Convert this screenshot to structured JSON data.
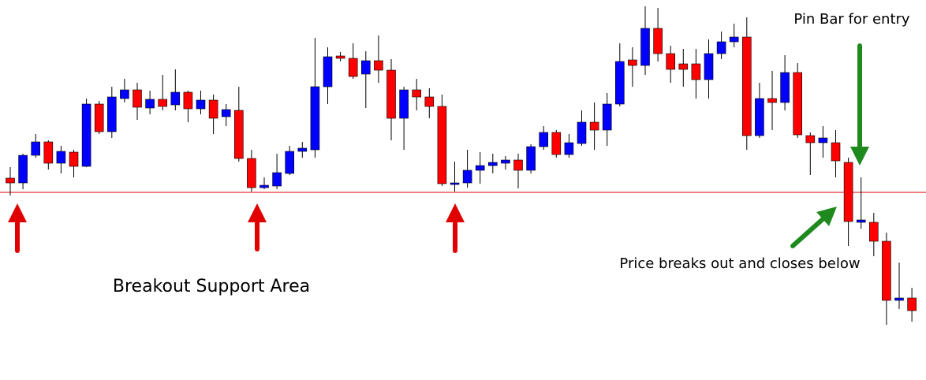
{
  "chart_data": {
    "type": "candlestick",
    "annotations": [
      "Pin Bar for entry",
      "Price breaks out and closes below",
      "Breakout Support Area"
    ],
    "ylim": [
      0,
      482
    ],
    "support_level": 238,
    "up_color": "#0000ff",
    "down_color": "#ff0000",
    "support_color": "#e00000",
    "open": [
      256,
      250,
      285,
      302,
      275,
      289,
      271,
      350,
      315,
      357,
      368,
      345,
      356,
      349,
      365,
      344,
      355,
      334,
      342,
      281,
      244,
      246,
      262,
      290,
      292,
      372,
      411,
      408,
      388,
      405,
      393,
      332,
      368,
      359,
      347,
      248,
      250,
      266,
      272,
      275,
      279,
      266,
      296,
      314,
      286,
      300,
      327,
      317,
      350,
      406,
      399,
      446,
      414,
      401,
      401,
      381,
      414,
      429,
      435,
      310,
      357,
      352,
      390,
      310,
      301,
      301,
      276,
      200,
      200,
      176,
      101,
      104
    ],
    "high": [
      270,
      287,
      312,
      304,
      297,
      292,
      357,
      354,
      372,
      382,
      377,
      367,
      387,
      394,
      367,
      367,
      362,
      350,
      372,
      292,
      257,
      287,
      297,
      302,
      434,
      422,
      416,
      427,
      417,
      437,
      407,
      372,
      382,
      370,
      362,
      277,
      292,
      289,
      287,
      284,
      287,
      299,
      322,
      317,
      312,
      342,
      352,
      364,
      427,
      422,
      474,
      472,
      424,
      420,
      420,
      432,
      442,
      452,
      460,
      377,
      392,
      412,
      402,
      314,
      322,
      317,
      282,
      257,
      212,
      187,
      149,
      117
    ],
    "low": [
      234,
      242,
      282,
      267,
      262,
      257,
      270,
      312,
      307,
      352,
      330,
      337,
      342,
      342,
      327,
      337,
      312,
      322,
      277,
      239,
      242,
      242,
      260,
      282,
      282,
      350,
      404,
      382,
      345,
      377,
      304,
      292,
      342,
      332,
      246,
      239,
      244,
      249,
      262,
      267,
      243,
      262,
      292,
      282,
      282,
      297,
      292,
      297,
      347,
      372,
      387,
      404,
      377,
      372,
      357,
      357,
      407,
      422,
      292,
      307,
      317,
      342,
      307,
      260,
      282,
      257,
      170,
      192,
      157,
      70,
      90,
      74
    ],
    "close": [
      250,
      285,
      302,
      275,
      290,
      271,
      350,
      315,
      359,
      368,
      346,
      356,
      347,
      365,
      344,
      355,
      332,
      343,
      281,
      244,
      247,
      263,
      290,
      294,
      372,
      410,
      408,
      385,
      405,
      393,
      332,
      368,
      359,
      347,
      249,
      250,
      266,
      272,
      276,
      279,
      266,
      296,
      314,
      286,
      301,
      327,
      317,
      350,
      404,
      399,
      446,
      414,
      394,
      394,
      381,
      414,
      429,
      435,
      310,
      357,
      352,
      390,
      311,
      301,
      307,
      278,
      201,
      203,
      176,
      101,
      104,
      88
    ]
  }
}
